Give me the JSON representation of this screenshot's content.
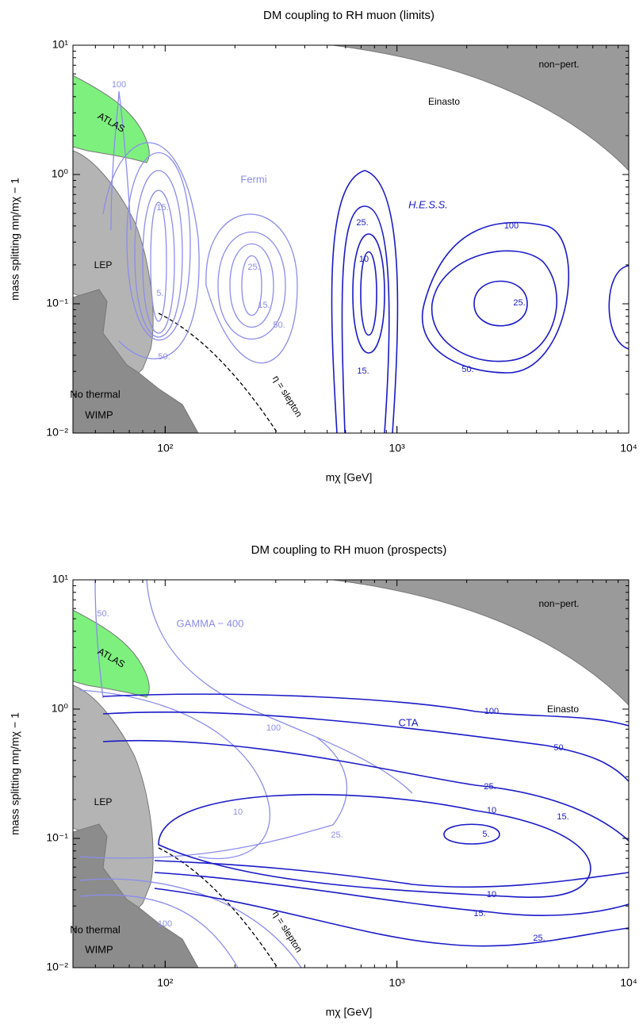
{
  "chart_data": [
    {
      "type": "contour",
      "title": "DM coupling to RH muon (limits)",
      "xlabel": "mχ [GeV]",
      "ylabel": "mass splitting mη/mχ − 1",
      "xscale": "log",
      "yscale": "log",
      "xlim": [
        40,
        10000
      ],
      "ylim": [
        0.01,
        10
      ],
      "xticks": [
        {
          "value": 100,
          "label": "10²"
        },
        {
          "value": 1000,
          "label": "10³"
        },
        {
          "value": 10000,
          "label": "10⁴"
        }
      ],
      "yticks": [
        {
          "value": 0.01,
          "label": "10⁻²"
        },
        {
          "value": 0.1,
          "label": "10⁻¹"
        },
        {
          "value": 1,
          "label": "10⁰"
        },
        {
          "value": 10,
          "label": "10¹"
        }
      ],
      "annotations": [
        "ATLAS",
        "LEP",
        "No thermal",
        "WIMP",
        "non−pert.",
        "Einasto",
        "Fermi",
        "H.E.S.S.",
        "η = slepton",
        "100",
        "15.",
        "5.",
        "50.",
        "25.",
        "15.",
        "50.",
        "25.",
        "10",
        "15.",
        "100",
        "25.",
        "50."
      ]
    },
    {
      "type": "contour",
      "title": "DM coupling to RH muon (prospects)",
      "xlabel": "mχ [GeV]",
      "ylabel": "mass splitting mη/mχ − 1",
      "xscale": "log",
      "yscale": "log",
      "xlim": [
        40,
        10000
      ],
      "ylim": [
        0.01,
        10
      ],
      "xticks": [
        {
          "value": 100,
          "label": "10²"
        },
        {
          "value": 1000,
          "label": "10³"
        },
        {
          "value": 10000,
          "label": "10⁴"
        }
      ],
      "yticks": [
        {
          "value": 0.01,
          "label": "10⁻²"
        },
        {
          "value": 0.1,
          "label": "10⁻¹"
        },
        {
          "value": 1,
          "label": "10⁰"
        },
        {
          "value": 10,
          "label": "10¹"
        }
      ],
      "annotations": [
        "ATLAS",
        "LEP",
        "No thermal",
        "WIMP",
        "non−pert.",
        "Einasto",
        "GAMMA − 400",
        "CTA",
        "η = slepton",
        "50.",
        "100",
        "10",
        "25.",
        "100",
        "100",
        "50.",
        "25.",
        "10",
        "15.",
        "5.",
        "10",
        "15.",
        "25."
      ]
    }
  ]
}
